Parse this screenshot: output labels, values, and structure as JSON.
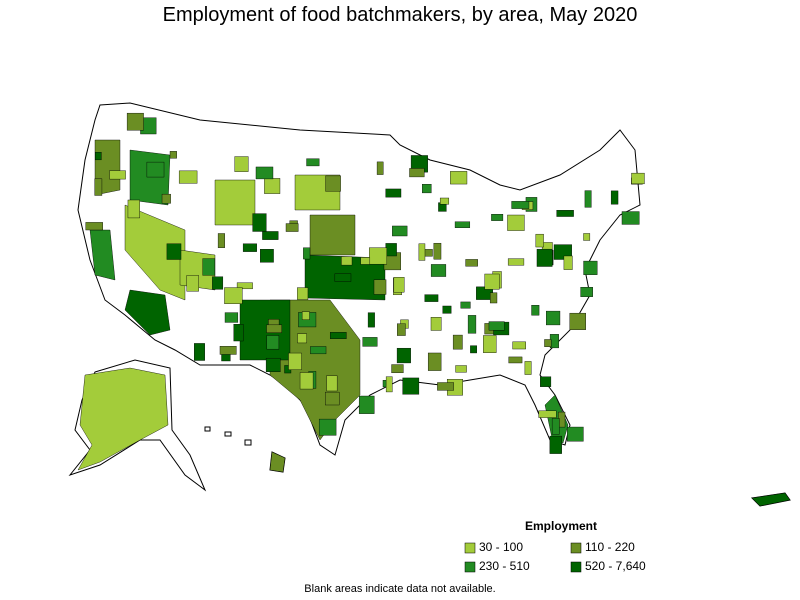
{
  "title": "Employment of food batchmakers, by area, May 2020",
  "legend": {
    "title": "Employment",
    "items": [
      {
        "label": "30 - 100",
        "color": "#a3cc3a"
      },
      {
        "label": "110 - 220",
        "color": "#6b8e23"
      },
      {
        "label": "230 - 510",
        "color": "#228b22"
      },
      {
        "label": "520 - 7,640",
        "color": "#006400"
      }
    ]
  },
  "footnote": "Blank areas indicate data not available."
}
